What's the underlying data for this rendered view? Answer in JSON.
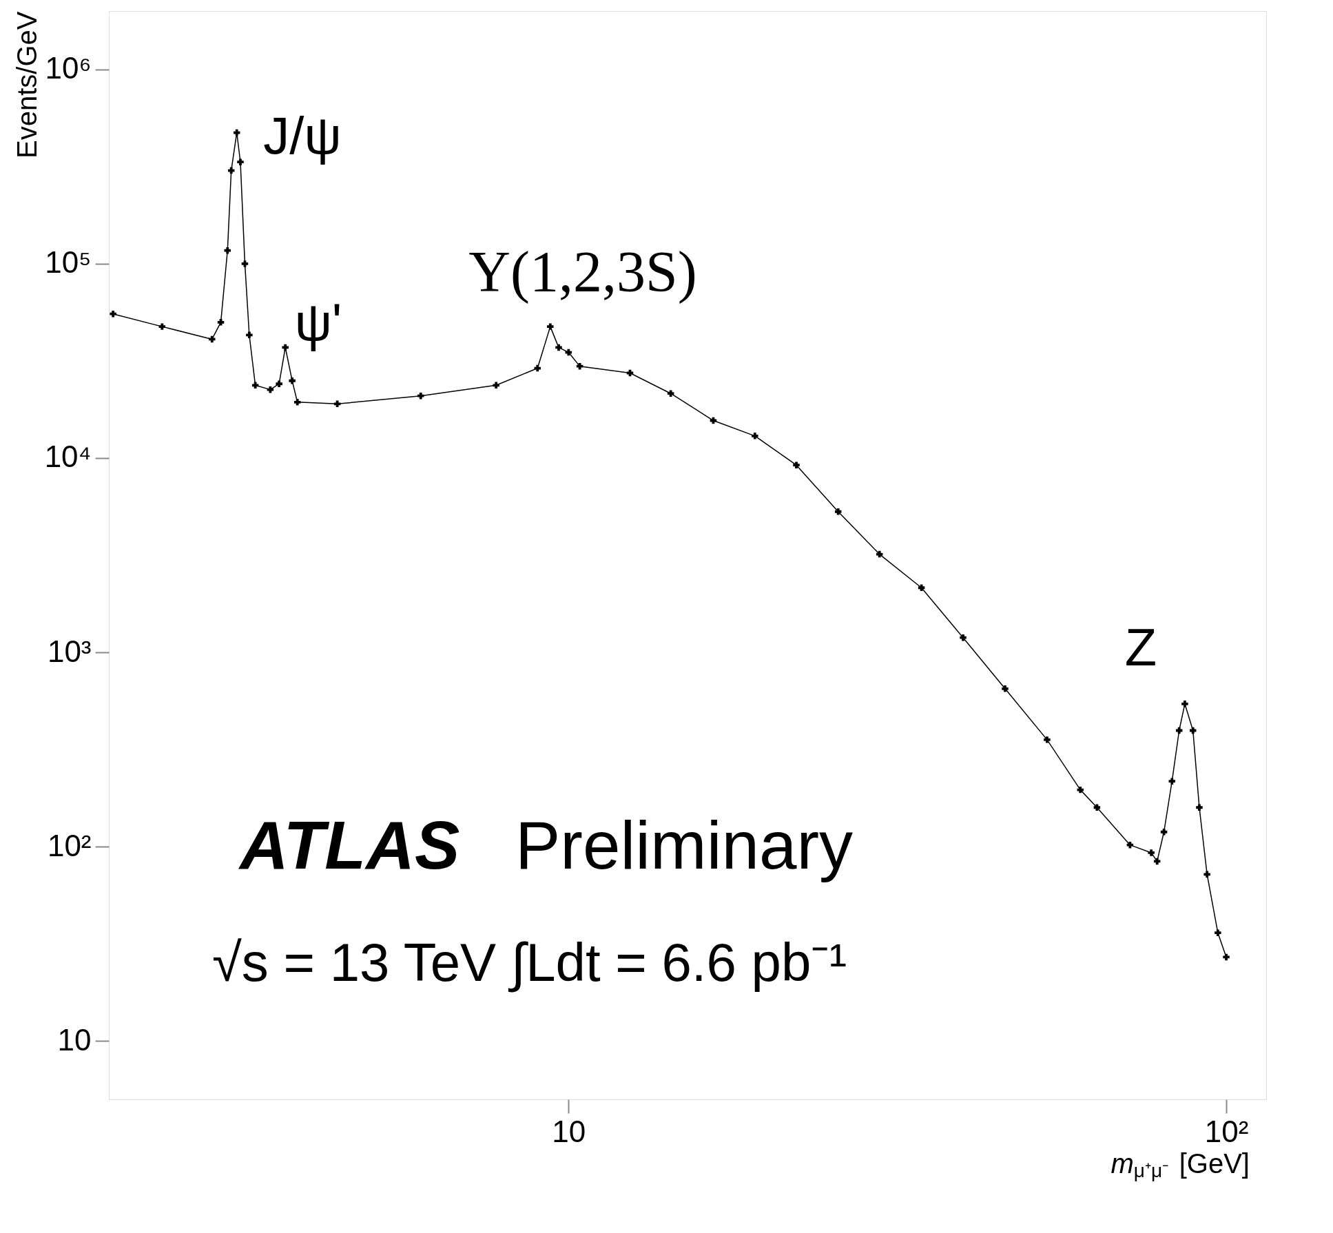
{
  "chart_data": {
    "type": "line",
    "xlabel": "m$_{μ⁺μ⁻}$ [GeV]",
    "ylabel": "Events/GeV",
    "log": "xy",
    "grid": false,
    "legend": false,
    "marker": "cross",
    "line_style": "solid",
    "xlim": [
      2,
      115
    ],
    "ylim": [
      5,
      2000000
    ],
    "xticks": [
      10,
      {
        "value": 100,
        "label": "10²"
      }
    ],
    "yticks": [
      10,
      {
        "value": 100,
        "label": "10²"
      },
      {
        "value": 1000,
        "label": "10³"
      },
      {
        "value": 10000,
        "label": "10⁴"
      },
      {
        "value": 100000,
        "label": "10⁵"
      },
      {
        "value": 1000000,
        "label": "10⁶"
      }
    ],
    "series": [
      {
        "color": "#000000",
        "x": [
          2.03,
          2.41,
          2.87,
          2.96,
          3.03,
          3.07,
          3.13,
          3.17,
          3.22,
          3.27,
          3.34,
          3.52,
          3.63,
          3.71,
          3.8,
          3.87,
          4.45,
          5.96,
          7.76,
          8.97,
          9.38,
          9.66,
          10,
          10.4,
          12.4,
          14.3,
          16.6,
          19.2,
          22.2,
          25.7,
          29.7,
          34.4,
          39.8,
          46.1,
          53.4,
          60,
          63.6,
          71.4,
          76.9,
          78.5,
          80.4,
          82.7,
          84.8,
          86.5,
          89,
          91,
          93.5,
          97.1,
          100
        ],
        "values": [
          55200,
          47500,
          40900,
          50000,
          117000,
          302000,
          473000,
          334000,
          100000,
          43000,
          23700,
          22500,
          24100,
          37100,
          25000,
          19400,
          19000,
          20900,
          23700,
          29000,
          47500,
          37100,
          35000,
          29700,
          27400,
          21500,
          15600,
          13000,
          9200,
          5300,
          3200,
          2150,
          1190,
          650,
          355,
          196,
          159,
          102,
          93,
          84,
          119,
          217,
          396,
          543,
          396,
          159,
          72,
          36,
          27
        ]
      }
    ],
    "annotations": [
      "J/ψ",
      "ψ'",
      "Υ(1,2,3S)",
      "Z",
      "ATLAS",
      "Preliminary",
      "√s = 13 TeV  ∫Ldt = 6.6 pb⁻¹"
    ]
  }
}
